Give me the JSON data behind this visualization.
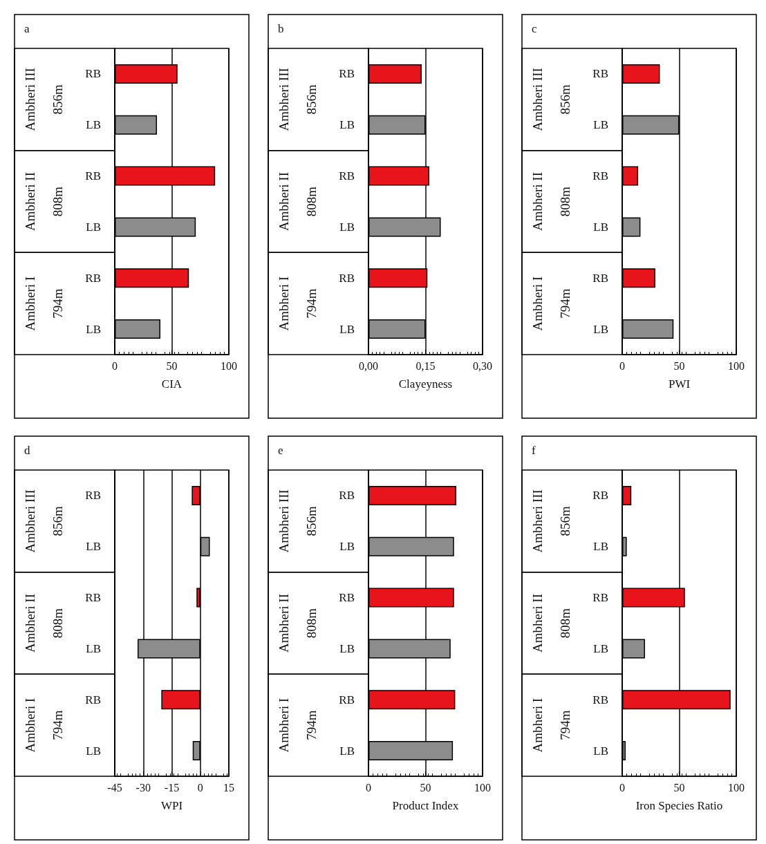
{
  "chart_data": [
    {
      "type": "bar",
      "orientation": "horizontal",
      "title": "a",
      "xlabel": "CIA",
      "categories": [
        "RB",
        "LB",
        "RB",
        "LB",
        "RB",
        "LB"
      ],
      "values": [
        55,
        37,
        88,
        71,
        65,
        40
      ],
      "colors": [
        "#e8141c",
        "#8c8c8c",
        "#e8141c",
        "#8c8c8c",
        "#e8141c",
        "#8c8c8c"
      ],
      "annotations": [
        "Ambheri III",
        "856m",
        "Ambheri II",
        "808m",
        "Ambheri I",
        "794m"
      ],
      "xlim": [
        0,
        100
      ],
      "xticks": [
        0,
        50,
        100
      ],
      "grid": "x"
    },
    {
      "type": "bar",
      "orientation": "horizontal",
      "title": "b",
      "xlabel": "Clayeyness",
      "categories": [
        "RB",
        "LB",
        "RB",
        "LB",
        "RB",
        "LB"
      ],
      "values": [
        0.14,
        0.15,
        0.16,
        0.19,
        0.155,
        0.15
      ],
      "colors": [
        "#e8141c",
        "#8c8c8c",
        "#e8141c",
        "#8c8c8c",
        "#e8141c",
        "#8c8c8c"
      ],
      "annotations": [
        "Ambheri III",
        "856m",
        "Ambheri II",
        "808m",
        "Ambheri I",
        "794m"
      ],
      "xlim": [
        0,
        0.3
      ],
      "xticks": [
        {
          "value": 0,
          "label": "0,00"
        },
        {
          "value": 0.15,
          "label": "0,15"
        },
        {
          "value": 0.3,
          "label": "0,30"
        }
      ],
      "grid": "x"
    },
    {
      "type": "bar",
      "orientation": "horizontal",
      "title": "c",
      "xlabel": "PWI",
      "categories": [
        "RB",
        "LB",
        "RB",
        "LB",
        "RB",
        "LB"
      ],
      "values": [
        33,
        50,
        14,
        16,
        29,
        45
      ],
      "colors": [
        "#e8141c",
        "#8c8c8c",
        "#e8141c",
        "#8c8c8c",
        "#e8141c",
        "#8c8c8c"
      ],
      "annotations": [
        "Ambheri III",
        "856m",
        "Ambheri II",
        "808m",
        "Ambheri I",
        "794m"
      ],
      "xlim": [
        0,
        100
      ],
      "xticks": [
        0,
        50,
        100
      ],
      "grid": "x"
    },
    {
      "type": "bar",
      "orientation": "horizontal",
      "title": "d",
      "xlabel": "WPI",
      "categories": [
        "RB",
        "LB",
        "RB",
        "LB",
        "RB",
        "LB"
      ],
      "values": [
        -4.5,
        5,
        -2,
        -33,
        -20.5,
        -4
      ],
      "colors": [
        "#e8141c",
        "#8c8c8c",
        "#e8141c",
        "#8c8c8c",
        "#e8141c",
        "#8c8c8c"
      ],
      "annotations": [
        "Ambheri III",
        "856m",
        "Ambheri II",
        "808m",
        "Ambheri I",
        "794m"
      ],
      "xlim": [
        -45,
        15
      ],
      "xticks": [
        -45,
        -30,
        -15,
        0,
        15
      ],
      "grid": "x"
    },
    {
      "type": "bar",
      "orientation": "horizontal",
      "title": "e",
      "xlabel": "Product Index",
      "categories": [
        "RB",
        "LB",
        "RB",
        "LB",
        "RB",
        "LB"
      ],
      "values": [
        77,
        75,
        75,
        72,
        76,
        74
      ],
      "colors": [
        "#e8141c",
        "#8c8c8c",
        "#e8141c",
        "#8c8c8c",
        "#e8141c",
        "#8c8c8c"
      ],
      "annotations": [
        "Ambheri III",
        "856m",
        "Ambheri II",
        "808m",
        "Ambheri I",
        "794m"
      ],
      "xlim": [
        0,
        100
      ],
      "xticks": [
        0,
        50,
        100
      ],
      "grid": "x"
    },
    {
      "type": "bar",
      "orientation": "horizontal",
      "title": "f",
      "xlabel": "Iron Species Ratio",
      "categories": [
        "RB",
        "LB",
        "RB",
        "LB",
        "RB",
        "LB"
      ],
      "values": [
        8,
        4,
        55,
        20,
        95,
        3
      ],
      "colors": [
        "#e8141c",
        "#8c8c8c",
        "#e8141c",
        "#8c8c8c",
        "#e8141c",
        "#8c8c8c"
      ],
      "annotations": [
        "Ambheri III",
        "856m",
        "Ambheri II",
        "808m",
        "Ambheri I",
        "794m"
      ],
      "xlim": [
        0,
        100
      ],
      "xticks": [
        0,
        50,
        100
      ],
      "grid": "x"
    }
  ]
}
